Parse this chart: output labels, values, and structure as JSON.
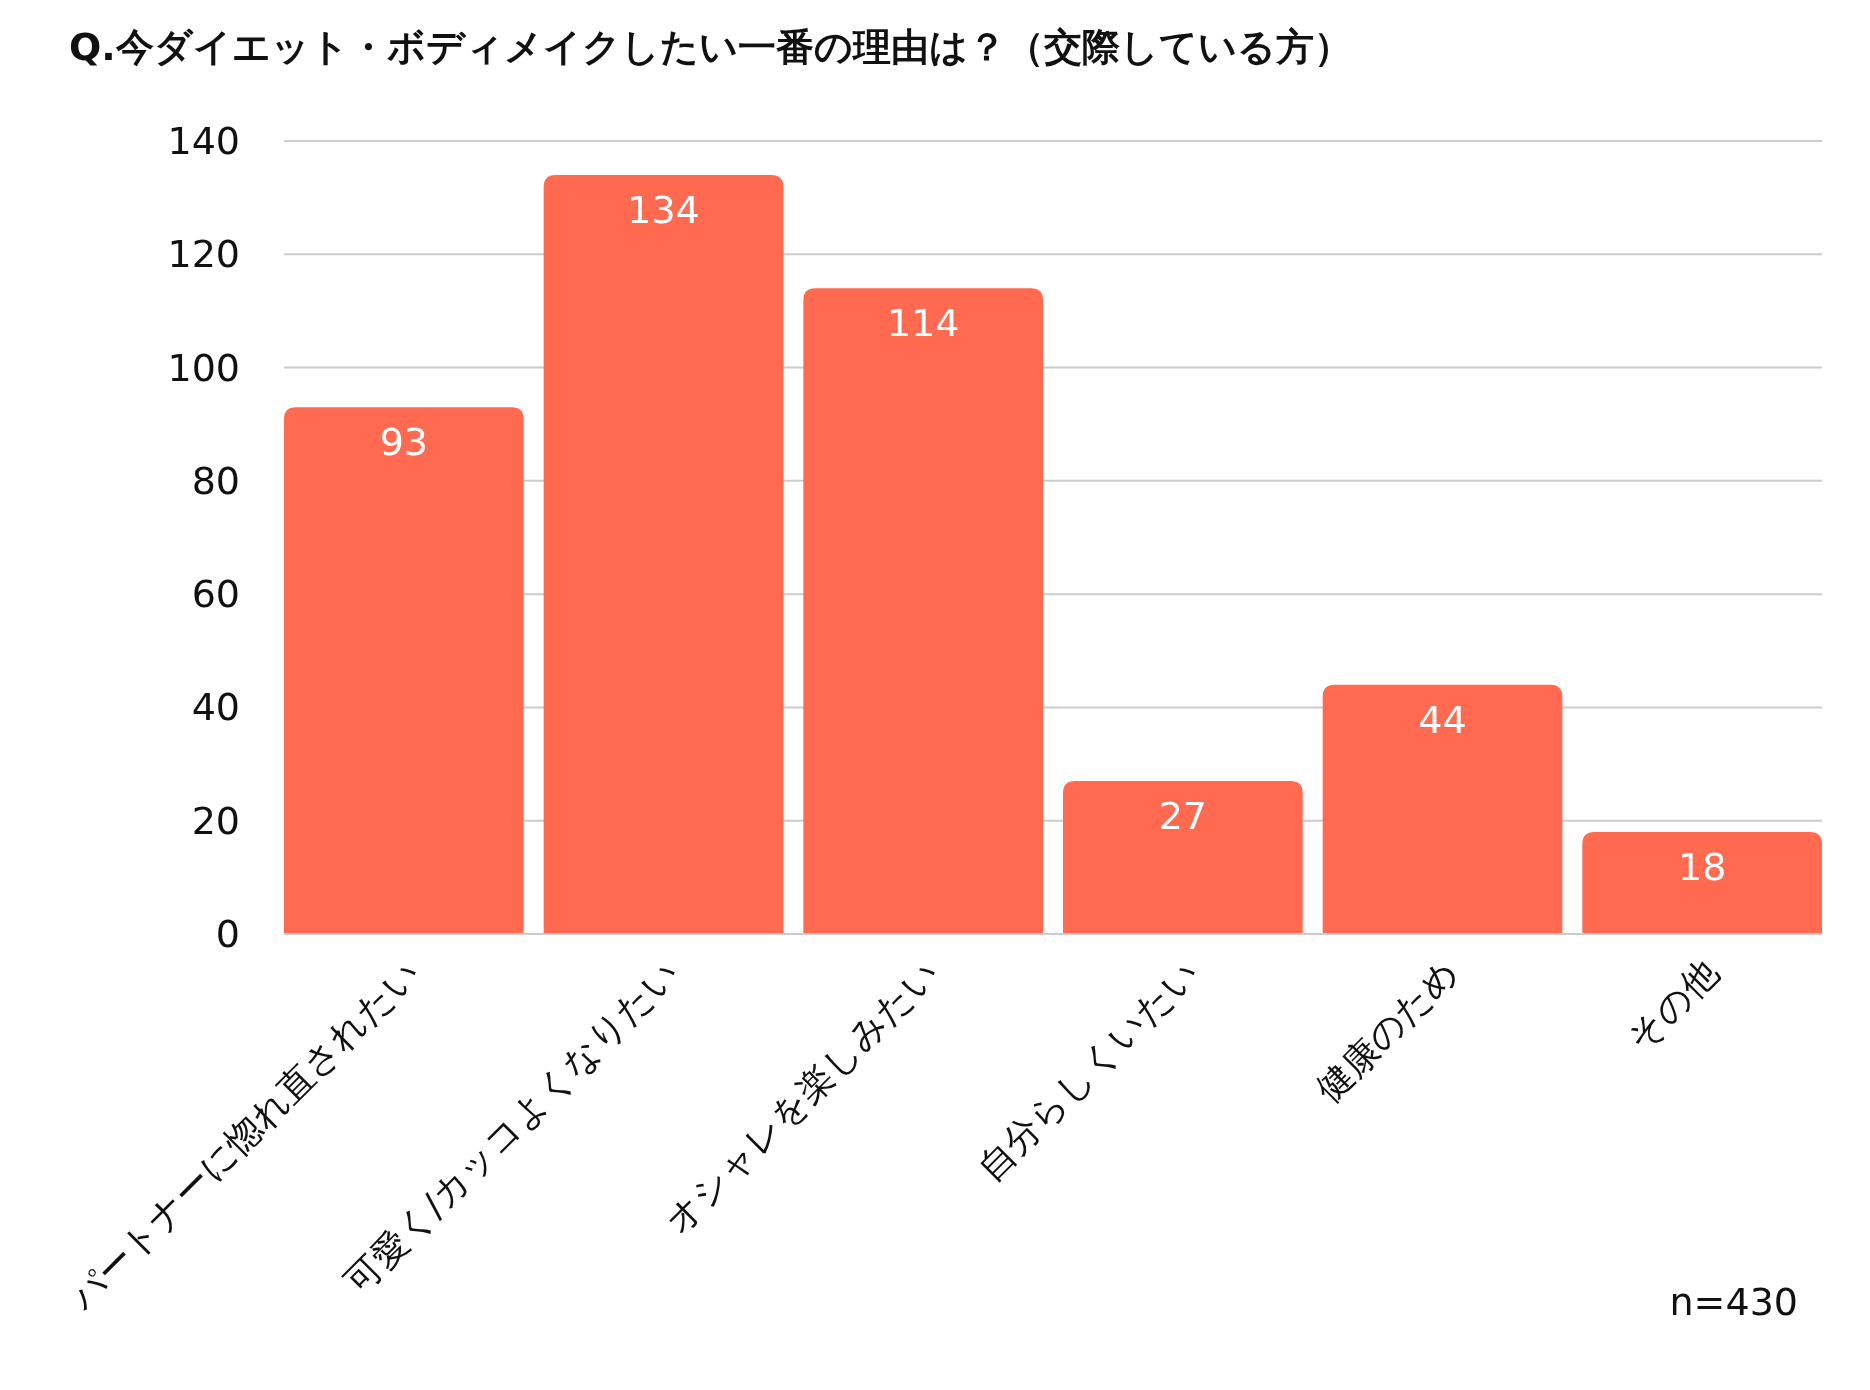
{
  "chart_data": {
    "type": "bar",
    "title": "Q.今ダイエット・ボディメイクしたい一番の理由は？（交際している方）",
    "categories": [
      "パートナーに惚れ直されたい",
      "可愛く/カッコよくなりたい",
      "オシャレを楽しみたい",
      "自分らしくいたい",
      "健康のため",
      "その他"
    ],
    "values": [
      93,
      134,
      114,
      27,
      44,
      18
    ],
    "color": "#ff6a50",
    "ylim": [
      0,
      140
    ],
    "yticks": [
      0,
      20,
      40,
      60,
      80,
      100,
      120,
      140
    ],
    "grid": "y",
    "data_labels": true,
    "annotations": [
      "n=430"
    ]
  }
}
